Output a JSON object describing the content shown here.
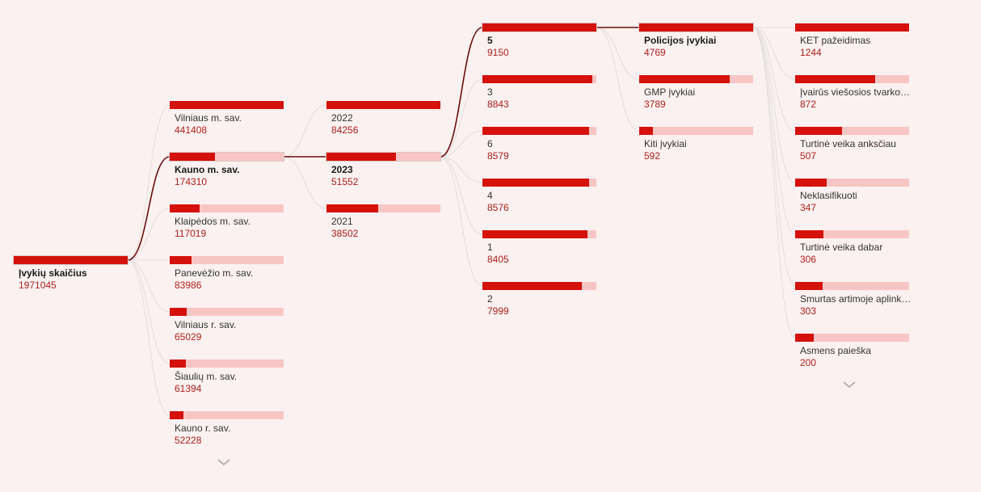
{
  "colors": {
    "background": "#fbf1f0",
    "bar_fill": "#d5110c",
    "bar_track": "#f7c6c4",
    "value_text": "#b0201c",
    "selected_path": "#6b0f0d",
    "unselected_path": "#e2dedd"
  },
  "levels": [
    {
      "name": "level-total",
      "nodes": [
        {
          "label": "Įvykių skaičius",
          "value": "1971045",
          "fraction": 1.0,
          "selected": true
        }
      ]
    },
    {
      "name": "level-municipality",
      "nodes": [
        {
          "label": "Vilniaus m. sav.",
          "value": "441408",
          "fraction": 1.0,
          "selected": false
        },
        {
          "label": "Kauno m. sav.",
          "value": "174310",
          "fraction": 0.395,
          "selected": true
        },
        {
          "label": "Klaipėdos m. sav.",
          "value": "117019",
          "fraction": 0.265,
          "selected": false
        },
        {
          "label": "Panevėžio m. sav.",
          "value": "83986",
          "fraction": 0.19,
          "selected": false
        },
        {
          "label": "Vilniaus r. sav.",
          "value": "65029",
          "fraction": 0.147,
          "selected": false
        },
        {
          "label": "Šiaulių m. sav.",
          "value": "61394",
          "fraction": 0.139,
          "selected": false
        },
        {
          "label": "Kauno r. sav.",
          "value": "52228",
          "fraction": 0.118,
          "selected": false
        }
      ],
      "has_more": true,
      "more_icon": "chevron-down-icon"
    },
    {
      "name": "level-year",
      "nodes": [
        {
          "label": "2022",
          "value": "84256",
          "fraction": 1.0,
          "selected": false
        },
        {
          "label": "2023",
          "value": "51552",
          "fraction": 0.612,
          "selected": true
        },
        {
          "label": "2021",
          "value": "38502",
          "fraction": 0.457,
          "selected": false
        }
      ]
    },
    {
      "name": "level-month",
      "nodes": [
        {
          "label": "5",
          "value": "9150",
          "fraction": 1.0,
          "selected": true
        },
        {
          "label": "3",
          "value": "8843",
          "fraction": 0.966,
          "selected": false
        },
        {
          "label": "6",
          "value": "8579",
          "fraction": 0.938,
          "selected": false
        },
        {
          "label": "4",
          "value": "8576",
          "fraction": 0.937,
          "selected": false
        },
        {
          "label": "1",
          "value": "8405",
          "fraction": 0.919,
          "selected": false
        },
        {
          "label": "2",
          "value": "7999",
          "fraction": 0.874,
          "selected": false
        }
      ]
    },
    {
      "name": "level-source",
      "nodes": [
        {
          "label": "Policijos įvykiai",
          "value": "4769",
          "fraction": 1.0,
          "selected": true
        },
        {
          "label": "GMP įvykiai",
          "value": "3789",
          "fraction": 0.794,
          "selected": false
        },
        {
          "label": "Kiti įvykiai",
          "value": "592",
          "fraction": 0.124,
          "selected": false
        }
      ]
    },
    {
      "name": "level-category",
      "nodes": [
        {
          "label": "KET pažeidimas",
          "value": "1244",
          "fraction": 1.0,
          "selected": false
        },
        {
          "label": "Įvairūs viešosios tvarkos pažeidimai",
          "value": "872",
          "fraction": 0.701,
          "selected": false
        },
        {
          "label": "Turtinė veika anksčiau",
          "value": "507",
          "fraction": 0.408,
          "selected": false
        },
        {
          "label": "Neklasifikuoti",
          "value": "347",
          "fraction": 0.279,
          "selected": false
        },
        {
          "label": "Turtinė veika dabar",
          "value": "306",
          "fraction": 0.246,
          "selected": false
        },
        {
          "label": "Smurtas artimoje aplinkoje",
          "value": "303",
          "fraction": 0.244,
          "selected": false
        },
        {
          "label": "Asmens paieška",
          "value": "200",
          "fraction": 0.161,
          "selected": false
        }
      ],
      "has_more": true,
      "more_icon": "chevron-down-icon"
    }
  ]
}
